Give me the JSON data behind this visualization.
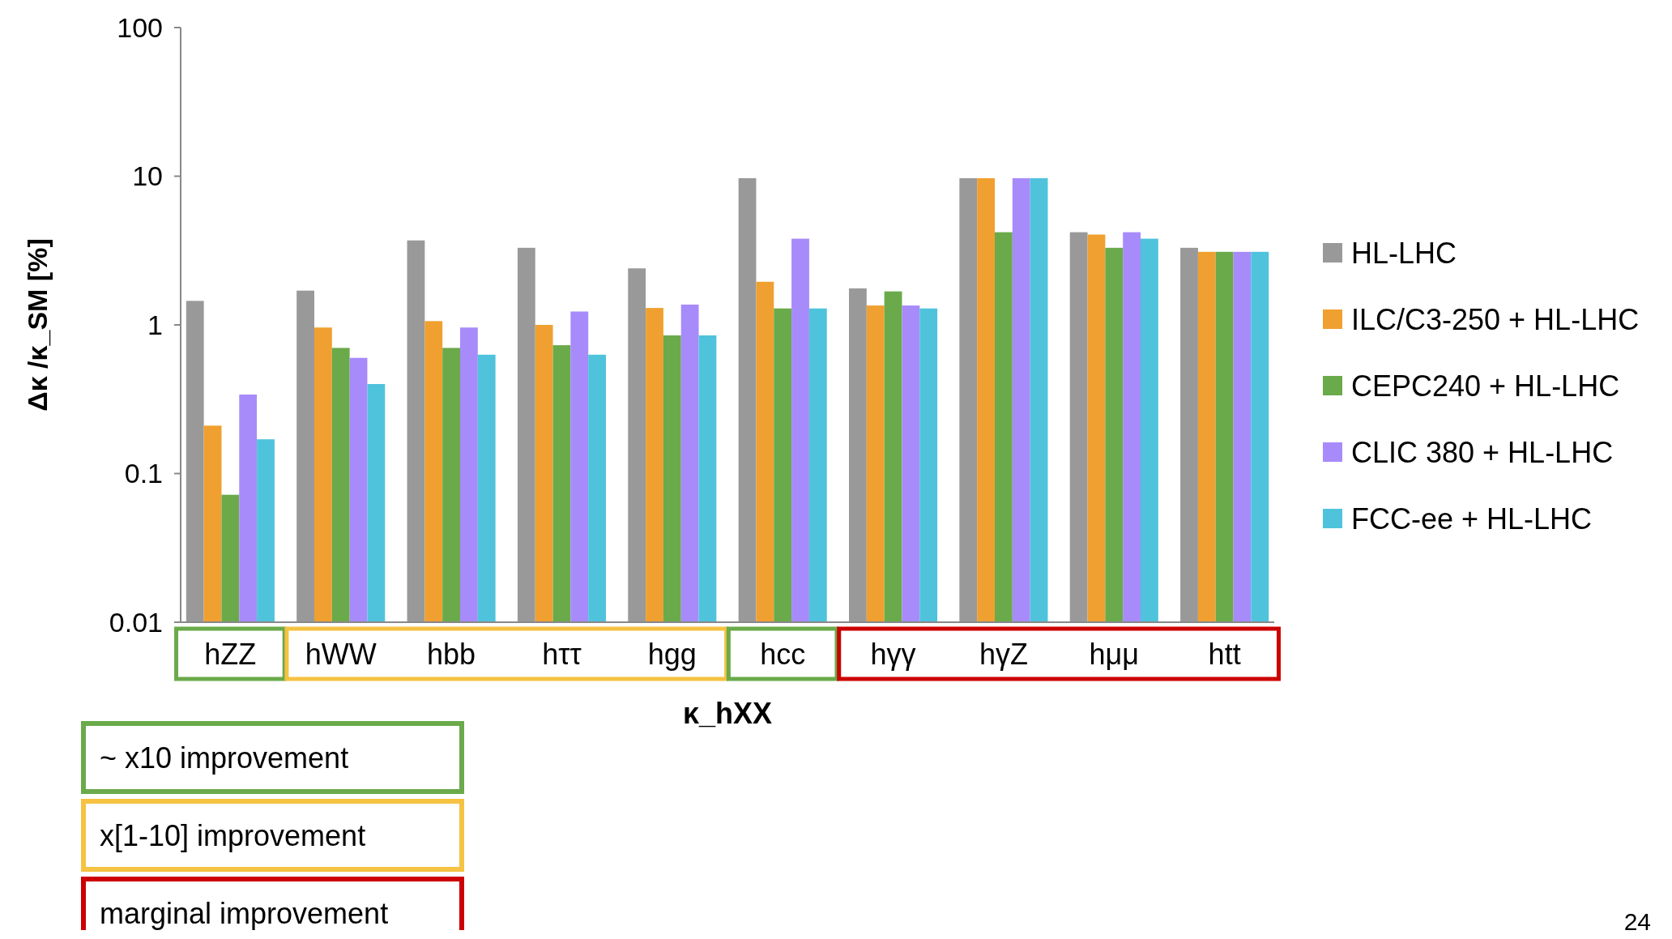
{
  "chart_data": {
    "type": "bar",
    "xlabel": "κ_hXX",
    "ylabel": "Δκ /κ_SM [%]",
    "categories": [
      "hZZ",
      "hWW",
      "hbb",
      "hττ",
      "hgg",
      "hcc",
      "hγγ",
      "hγZ",
      "hμμ",
      "htt"
    ],
    "series": [
      {
        "name": "HL-LHC",
        "color": "#999999",
        "values": [
          1.45,
          1.7,
          3.7,
          3.3,
          2.4,
          9.7,
          1.76,
          9.7,
          4.2,
          3.3
        ]
      },
      {
        "name": "ILC/C3-250 + HL-LHC",
        "color": "#f0a030",
        "values": [
          0.21,
          0.96,
          1.06,
          1.0,
          1.3,
          1.95,
          1.35,
          9.7,
          4.05,
          3.1
        ]
      },
      {
        "name": "CEPC240 + HL-LHC",
        "color": "#6aaa4a",
        "values": [
          0.072,
          0.7,
          0.7,
          0.73,
          0.85,
          1.29,
          1.68,
          4.2,
          3.3,
          3.1
        ]
      },
      {
        "name": "CLIC 380 + HL-LHC",
        "color": "#a78bfa",
        "values": [
          0.34,
          0.6,
          0.96,
          1.23,
          1.37,
          3.8,
          1.35,
          9.7,
          4.2,
          3.1
        ]
      },
      {
        "name": "FCC-ee + HL-LHC",
        "color": "#4fc3dc",
        "values": [
          0.17,
          0.4,
          0.63,
          0.63,
          0.85,
          1.29,
          1.29,
          9.7,
          3.8,
          3.1
        ]
      }
    ],
    "log": true,
    "ylim": [
      0.01,
      100
    ],
    "yticks": [
      0.01,
      0.1,
      1,
      10,
      100
    ],
    "grid": false,
    "legend": "right",
    "annotations": [
      "~ x10 improvement",
      "x[1-10] improvement",
      "marginal improvement",
      "24"
    ]
  }
}
